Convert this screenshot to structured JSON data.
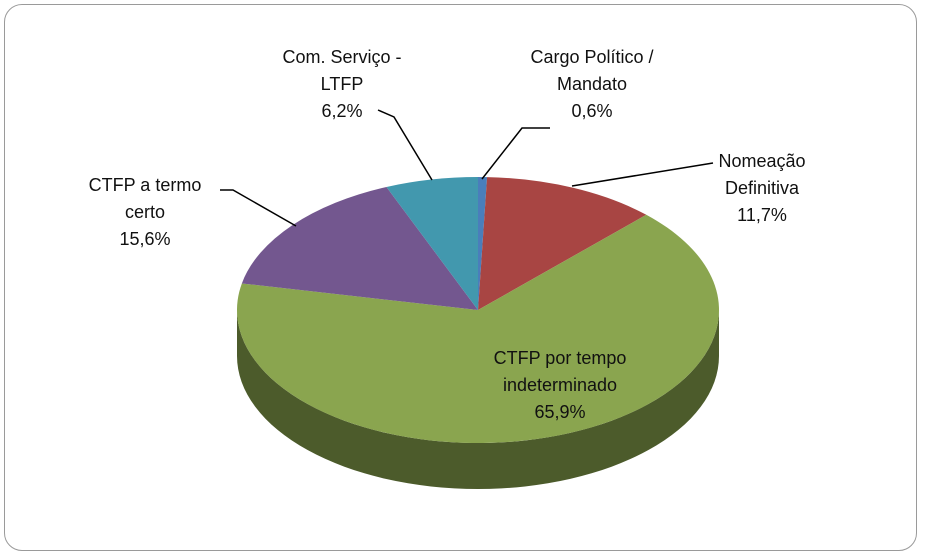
{
  "chart_data": {
    "type": "pie",
    "categories": [
      "Cargo Político / Mandato",
      "Nomeação Definitiva",
      "CTFP por tempo indeterminado",
      "CTFP a termo certo",
      "Com. Serviço - LTFP"
    ],
    "values": [
      0.6,
      11.7,
      65.9,
      15.6,
      6.2
    ],
    "value_labels": [
      "0,6%",
      "11,7%",
      "65,9%",
      "15,6%",
      "6,2%"
    ],
    "colors": [
      "#4a7ebb",
      "#a84543",
      "#8aa54f",
      "#73578f",
      "#4298ae"
    ]
  }
}
